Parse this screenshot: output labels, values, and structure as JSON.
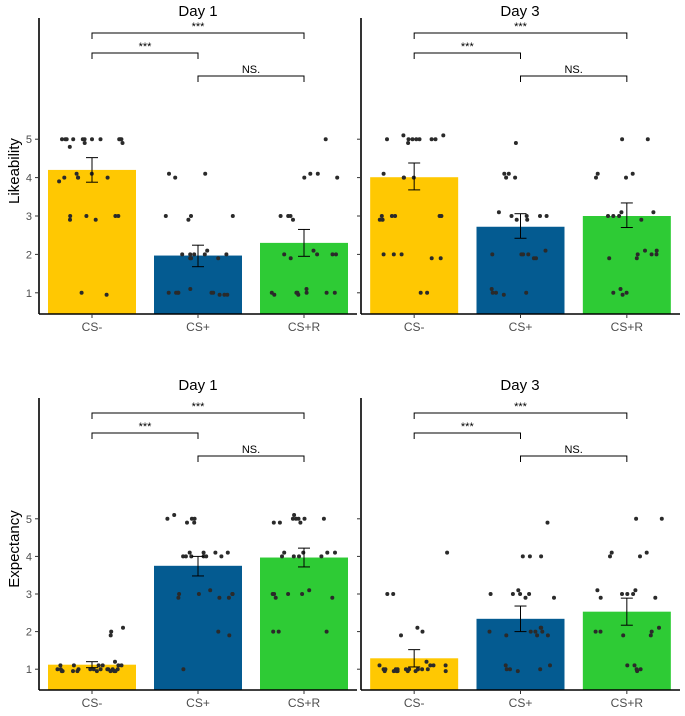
{
  "colors": {
    "cs_minus": "#ffc802",
    "cs_plus": "#045b91",
    "cs_plus_r": "#2ecb35"
  },
  "chart_data": [
    {
      "type": "bar",
      "title": "Day 1",
      "ylabel": "Likeability",
      "categories": [
        "CS-",
        "CS+",
        "CS+R"
      ],
      "values": [
        4.2,
        1.97,
        2.3
      ],
      "error": [
        [
          3.88,
          4.52
        ],
        [
          1.68,
          2.24
        ],
        [
          1.95,
          2.65
        ]
      ],
      "ylim": [
        0.5,
        5.5
      ],
      "yticks": [
        "1",
        "2",
        "3",
        "4",
        "5"
      ],
      "grid": false,
      "significance": [
        {
          "from": 0,
          "to": 2,
          "label": "***"
        },
        {
          "from": 0,
          "to": 1,
          "label": "***"
        },
        {
          "from": 1,
          "to": 2,
          "label": "NS."
        }
      ],
      "points_cs_minus": [
        5.0,
        5.0,
        5.0,
        5.0,
        5.0,
        5.0,
        5.0,
        5.0,
        5.0,
        5.0,
        5.0,
        4.9,
        4.9,
        4.8,
        4.1,
        4.1,
        4.0,
        4.0,
        4.0,
        4.0,
        3.9,
        3.0,
        3.0,
        3.0,
        3.0,
        2.9,
        2.9,
        1.0,
        0.95
      ],
      "points_cs_plus": [
        4.1,
        4.1,
        4.0,
        3.0,
        3.0,
        3.0,
        2.9,
        2.1,
        2.0,
        2.0,
        2.0,
        2.0,
        2.0,
        1.9,
        1.9,
        1.9,
        1.1,
        1.0,
        1.0,
        1.0,
        1.0,
        1.0,
        1.0,
        0.95,
        0.95,
        0.95
      ],
      "points_cs_plus_r": [
        5.0,
        4.1,
        4.1,
        4.0,
        4.0,
        3.0,
        3.0,
        3.0,
        2.9,
        2.1,
        2.0,
        2.0,
        2.0,
        2.0,
        1.9,
        1.1,
        1.0,
        1.0,
        1.0,
        1.0,
        1.0,
        1.0,
        0.95,
        0.95
      ]
    },
    {
      "type": "bar",
      "title": "Day 3",
      "ylabel": "",
      "categories": [
        "CS-",
        "CS+",
        "CS+R"
      ],
      "values": [
        4.01,
        2.72,
        3.0
      ],
      "error": [
        [
          3.68,
          4.38
        ],
        [
          2.42,
          3.06
        ],
        [
          2.7,
          3.34
        ]
      ],
      "ylim": [
        0.5,
        5.5
      ],
      "yticks": [],
      "grid": false,
      "significance": [
        {
          "from": 0,
          "to": 2,
          "label": "***"
        },
        {
          "from": 0,
          "to": 1,
          "label": "***"
        },
        {
          "from": 1,
          "to": 2,
          "label": "NS."
        }
      ],
      "points_cs_minus": [
        5.1,
        5.1,
        5.0,
        5.0,
        5.0,
        5.0,
        5.0,
        5.0,
        5.0,
        4.9,
        4.1,
        4.0,
        4.0,
        4.0,
        3.0,
        3.0,
        3.0,
        3.0,
        3.0,
        2.9,
        2.9,
        2.0,
        2.0,
        2.0,
        1.9,
        1.9,
        1.0,
        1.0
      ],
      "points_cs_plus": [
        4.9,
        4.1,
        4.1,
        4.0,
        4.0,
        3.1,
        3.0,
        3.0,
        3.0,
        3.0,
        2.9,
        2.9,
        2.1,
        2.0,
        2.0,
        2.0,
        2.0,
        1.9,
        1.9,
        1.1,
        1.0,
        1.0,
        1.0,
        0.95
      ],
      "points_cs_plus_r": [
        5.0,
        5.0,
        4.1,
        4.1,
        4.0,
        4.0,
        3.1,
        3.1,
        3.0,
        3.0,
        3.0,
        2.9,
        2.1,
        2.1,
        2.0,
        2.0,
        2.0,
        1.9,
        1.9,
        1.1,
        1.0,
        1.0,
        0.95
      ]
    },
    {
      "type": "bar",
      "title": "Day 1",
      "ylabel": "Expectancy",
      "categories": [
        "CS-",
        "CS+",
        "CS+R"
      ],
      "values": [
        1.12,
        3.75,
        3.97
      ],
      "error": [
        [
          1.04,
          1.2
        ],
        [
          3.48,
          4.0
        ],
        [
          3.72,
          4.22
        ]
      ],
      "ylim": [
        0.5,
        5.5
      ],
      "yticks": [
        "1",
        "2",
        "3",
        "4",
        "5"
      ],
      "grid": false,
      "significance": [
        {
          "from": 0,
          "to": 2,
          "label": "***"
        },
        {
          "from": 0,
          "to": 1,
          "label": "***"
        },
        {
          "from": 1,
          "to": 2,
          "label": "NS."
        }
      ],
      "points_cs_minus": [
        2.1,
        2.0,
        1.9,
        1.2,
        1.1,
        1.1,
        1.1,
        1.1,
        1.1,
        1.1,
        1.0,
        1.0,
        1.0,
        1.0,
        1.0,
        1.0,
        1.0,
        1.0,
        1.0,
        1.0,
        0.95,
        0.95,
        0.95,
        0.95,
        0.95,
        0.95,
        0.95,
        0.95
      ],
      "points_cs_plus": [
        5.1,
        5.0,
        5.0,
        5.0,
        4.9,
        4.9,
        4.1,
        4.1,
        4.1,
        4.1,
        4.0,
        4.0,
        4.0,
        4.0,
        4.0,
        4.0,
        3.1,
        3.0,
        3.0,
        3.0,
        3.0,
        2.9,
        2.9,
        2.9,
        2.0,
        1.9,
        1.0
      ],
      "points_cs_plus_r": [
        5.1,
        5.0,
        5.0,
        5.0,
        5.0,
        5.0,
        4.9,
        4.9,
        4.9,
        4.1,
        4.1,
        4.1,
        4.1,
        4.0,
        4.0,
        4.0,
        4.0,
        3.1,
        3.0,
        3.0,
        3.0,
        3.0,
        2.9,
        2.9,
        2.0,
        2.0,
        2.0
      ]
    },
    {
      "type": "bar",
      "title": "Day 3",
      "ylabel": "",
      "categories": [
        "CS-",
        "CS+",
        "CS+R"
      ],
      "values": [
        1.29,
        2.34,
        2.53
      ],
      "error": [
        [
          1.06,
          1.52
        ],
        [
          2.0,
          2.68
        ],
        [
          2.17,
          2.89
        ]
      ],
      "ylim": [
        0.5,
        5.5
      ],
      "yticks": [],
      "grid": false,
      "significance": [
        {
          "from": 0,
          "to": 2,
          "label": "***"
        },
        {
          "from": 0,
          "to": 1,
          "label": "***"
        },
        {
          "from": 1,
          "to": 2,
          "label": "NS."
        }
      ],
      "points_cs_minus": [
        4.1,
        3.0,
        3.0,
        2.1,
        2.0,
        1.9,
        1.2,
        1.1,
        1.1,
        1.1,
        1.1,
        1.0,
        1.0,
        1.0,
        1.0,
        1.0,
        1.0,
        1.0,
        1.0,
        1.0,
        1.0,
        0.95,
        0.95,
        0.95,
        0.95,
        0.95,
        0.95,
        0.95
      ],
      "points_cs_plus": [
        4.9,
        4.0,
        4.0,
        4.0,
        3.1,
        3.0,
        3.0,
        3.0,
        3.0,
        2.9,
        2.9,
        2.1,
        2.1,
        2.0,
        2.0,
        2.0,
        2.0,
        1.9,
        1.9,
        1.9,
        1.1,
        1.1,
        1.0,
        1.0,
        1.0,
        0.95
      ],
      "points_cs_plus_r": [
        5.0,
        5.0,
        4.1,
        4.1,
        4.0,
        4.0,
        3.1,
        3.1,
        3.0,
        3.0,
        3.0,
        2.9,
        2.9,
        2.1,
        2.0,
        2.0,
        2.0,
        1.9,
        1.9,
        1.1,
        1.1,
        1.0,
        1.0,
        0.95
      ]
    }
  ]
}
